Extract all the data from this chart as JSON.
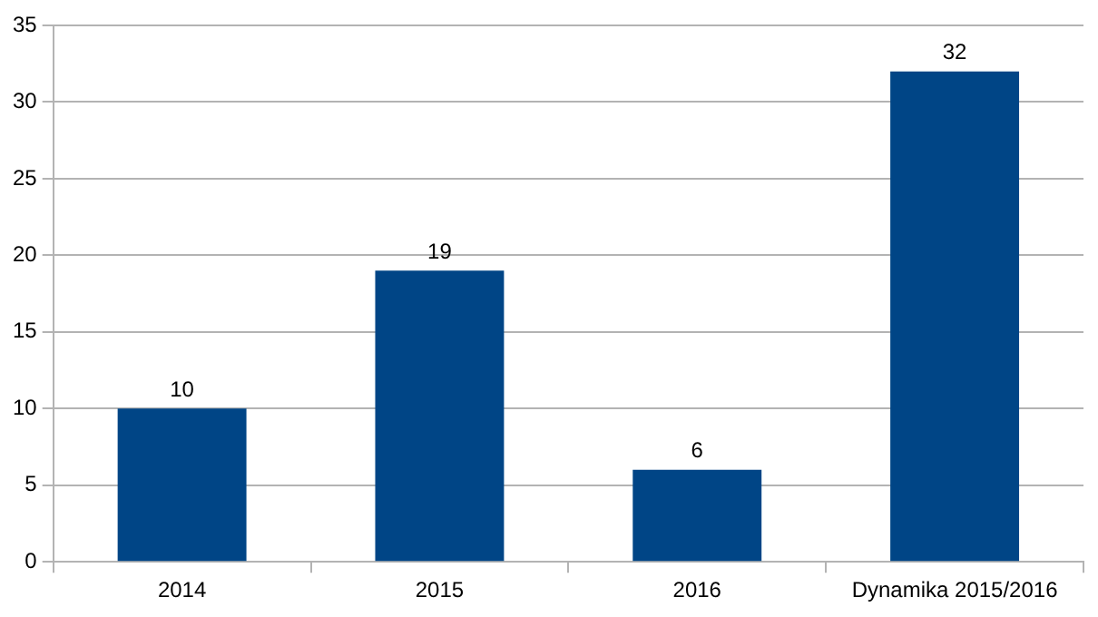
{
  "chart_data": {
    "type": "bar",
    "categories": [
      "2014",
      "2015",
      "2016",
      "Dynamika 2015/2016"
    ],
    "values": [
      10,
      19,
      6,
      32
    ],
    "color": "#004586",
    "ylim": [
      0,
      35
    ],
    "yticks": [
      0,
      5,
      10,
      15,
      20,
      25,
      30,
      35
    ],
    "grid": "y",
    "data_labels": true
  }
}
